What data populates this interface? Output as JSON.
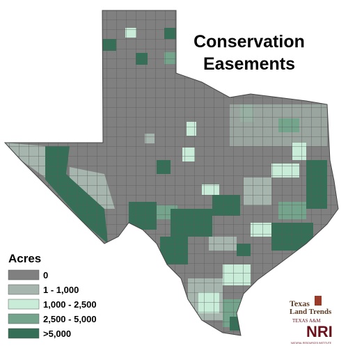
{
  "title": {
    "line1": "Conservation",
    "line2": "Easements"
  },
  "legend": {
    "title": "Acres",
    "items": [
      {
        "label": "0",
        "color": "#808080"
      },
      {
        "label": "1 - 1,000",
        "color": "#a6b5ad"
      },
      {
        "label": "1,000 - 2,500",
        "color": "#c9ecd9"
      },
      {
        "label": "2,500 - 5,000",
        "color": "#74a58c"
      },
      {
        "label": ">5,000",
        "color": "#356f57"
      }
    ]
  },
  "logo": {
    "land_trends_1": "Texas",
    "land_trends_2": "Land Trends",
    "university": "TEXAS A&M",
    "nri": "NRI",
    "institute": "NATURAL RESOURCES INSTITUTE"
  }
}
